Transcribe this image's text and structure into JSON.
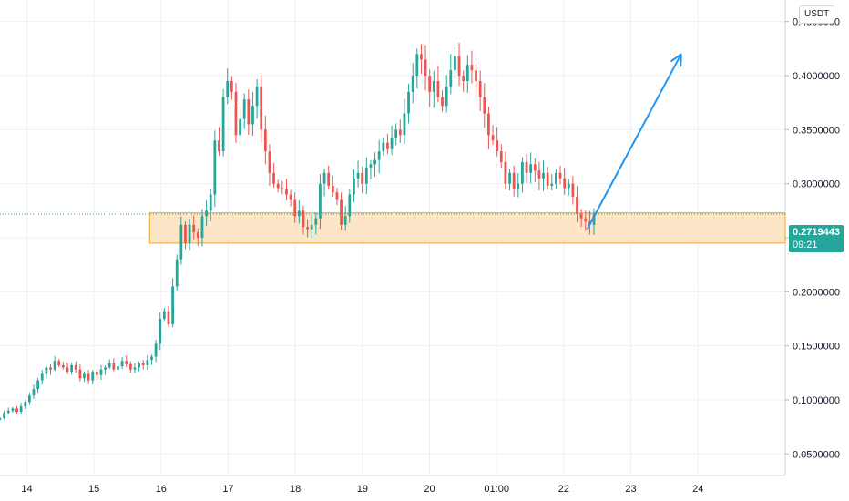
{
  "currency": "USDT",
  "last_price": {
    "value": "0.2719443",
    "countdown": "09:21",
    "color": "#26a69a"
  },
  "colors": {
    "up": "#26a69a",
    "down": "#ef5350",
    "zone_fill": "#fde5c8",
    "zone_stroke": "#f5a623",
    "arrow": "#2196f3",
    "grid": "#eef0f3"
  },
  "chart_data": {
    "type": "candlestick",
    "title": "",
    "xlabel": "",
    "ylabel": "",
    "ylim": [
      0.03,
      0.47
    ],
    "y_ticks": [
      0.05,
      0.1,
      0.15,
      0.2,
      0.25,
      0.3,
      0.35,
      0.4,
      0.45
    ],
    "y_tick_labels": [
      "0.0500000",
      "0.1000000",
      "0.1500000",
      "0.2000000",
      "0.2500000",
      "0.3000000",
      "0.3500000",
      "0.4000000",
      "0.4500000"
    ],
    "x_tick_labels": [
      "14",
      "15",
      "16",
      "17",
      "18",
      "19",
      "20",
      "01:00",
      "22",
      "23",
      "24"
    ],
    "x_ticks_day": [
      14,
      15,
      16,
      17,
      18,
      19,
      20,
      21,
      22,
      23,
      24
    ],
    "x_range_day": [
      13.6,
      25.3
    ],
    "support_zone": {
      "low": 0.245,
      "high": 0.273,
      "start_day": 15.83
    },
    "arrow": {
      "from_day": 22.35,
      "from_price": 0.258,
      "to_day": 23.75,
      "to_price": 0.42
    },
    "candle_days_start": 13.6,
    "candle_days_end": 22.45,
    "candles_close": [
      0.083,
      0.088,
      0.09,
      0.092,
      0.089,
      0.094,
      0.098,
      0.104,
      0.11,
      0.118,
      0.124,
      0.13,
      0.128,
      0.136,
      0.132,
      0.13,
      0.126,
      0.132,
      0.128,
      0.12,
      0.124,
      0.118,
      0.126,
      0.123,
      0.128,
      0.13,
      0.134,
      0.128,
      0.131,
      0.136,
      0.133,
      0.128,
      0.13,
      0.134,
      0.132,
      0.137,
      0.14,
      0.152,
      0.175,
      0.182,
      0.17,
      0.205,
      0.23,
      0.262,
      0.245,
      0.262,
      0.255,
      0.25,
      0.27,
      0.275,
      0.29,
      0.34,
      0.33,
      0.38,
      0.395,
      0.385,
      0.345,
      0.36,
      0.378,
      0.355,
      0.372,
      0.39,
      0.35,
      0.33,
      0.31,
      0.3,
      0.296,
      0.295,
      0.29,
      0.285,
      0.27,
      0.275,
      0.26,
      0.258,
      0.262,
      0.268,
      0.3,
      0.31,
      0.298,
      0.292,
      0.285,
      0.262,
      0.27,
      0.29,
      0.305,
      0.31,
      0.3,
      0.315,
      0.318,
      0.322,
      0.33,
      0.338,
      0.332,
      0.342,
      0.35,
      0.345,
      0.365,
      0.385,
      0.4,
      0.42,
      0.415,
      0.4,
      0.385,
      0.395,
      0.38,
      0.372,
      0.39,
      0.405,
      0.418,
      0.4,
      0.395,
      0.41,
      0.405,
      0.395,
      0.38,
      0.365,
      0.345,
      0.34,
      0.33,
      0.32,
      0.3,
      0.31,
      0.295,
      0.3,
      0.32,
      0.31,
      0.318,
      0.312,
      0.305,
      0.31,
      0.298,
      0.3,
      0.31,
      0.305,
      0.296,
      0.3,
      0.288,
      0.272,
      0.268,
      0.265,
      0.262,
      0.272
    ]
  }
}
